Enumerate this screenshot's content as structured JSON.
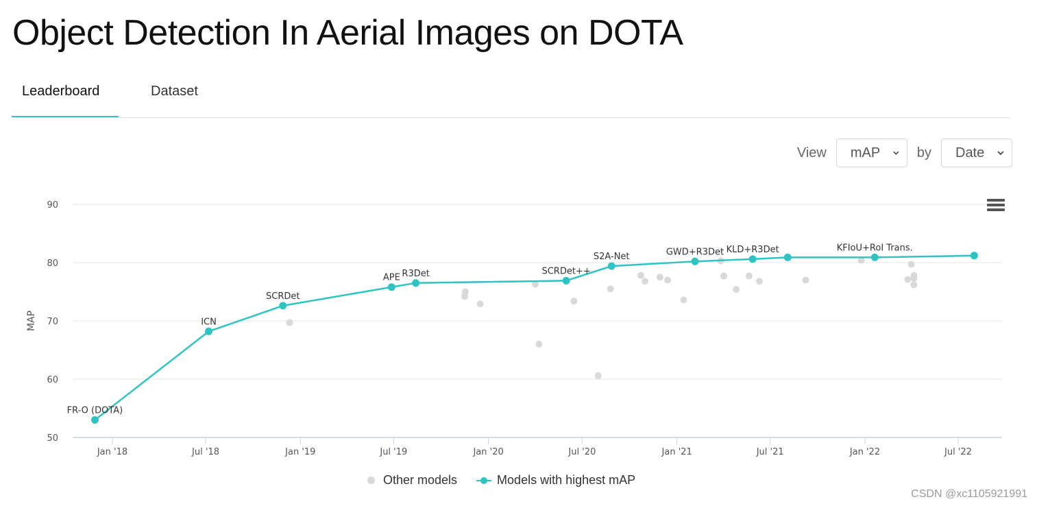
{
  "page": {
    "title": "Object Detection In Aerial Images on DOTA"
  },
  "tabs": [
    {
      "label": "Leaderboard",
      "active": true
    },
    {
      "label": "Dataset",
      "active": false
    }
  ],
  "controls": {
    "view_label": "View",
    "view_value": "mAP",
    "by_label": "by",
    "by_value": "Date"
  },
  "colors": {
    "accent": "#2ec4c4",
    "other": "#d9d9d9",
    "grid": "#e6e6e6"
  },
  "chart_data": {
    "type": "scatter",
    "ylabel": "MAP",
    "ylim": [
      50,
      90
    ],
    "yticks": [
      50,
      60,
      70,
      80,
      90
    ],
    "xticks": [
      {
        "label": "Jan '18",
        "date": "2018-01-01"
      },
      {
        "label": "Jul '18",
        "date": "2018-07-01"
      },
      {
        "label": "Jan '19",
        "date": "2019-01-01"
      },
      {
        "label": "Jul '19",
        "date": "2019-07-01"
      },
      {
        "label": "Jan '20",
        "date": "2020-01-01"
      },
      {
        "label": "Jul '20",
        "date": "2020-07-01"
      },
      {
        "label": "Jan '21",
        "date": "2021-01-01"
      },
      {
        "label": "Jul '21",
        "date": "2021-07-01"
      },
      {
        "label": "Jan '22",
        "date": "2022-01-01"
      },
      {
        "label": "Jul '22",
        "date": "2022-07-01"
      }
    ],
    "grid": true,
    "legend_position": "bottom-center",
    "series": [
      {
        "name": "Models with highest mAP",
        "color": "#2ec4c4",
        "points": [
          {
            "x": "2017-11-28",
            "y": 53.0,
            "label": "FR-O (DOTA)"
          },
          {
            "x": "2018-07-07",
            "y": 68.2,
            "label": "ICN"
          },
          {
            "x": "2018-11-28",
            "y": 72.6,
            "label": "SCRDet"
          },
          {
            "x": "2019-06-27",
            "y": 75.8,
            "label": "APE"
          },
          {
            "x": "2019-08-13",
            "y": 76.5,
            "label": "R3Det"
          },
          {
            "x": "2020-05-31",
            "y": 76.9,
            "label": "SCRDet++"
          },
          {
            "x": "2020-08-27",
            "y": 79.4,
            "label": "S2A-Net"
          },
          {
            "x": "2021-02-05",
            "y": 80.2,
            "label": "GWD+R3Det"
          },
          {
            "x": "2021-05-28",
            "y": 80.6,
            "label": "KLD+R3Det"
          },
          {
            "x": "2021-08-04",
            "y": 80.9,
            "label": ""
          },
          {
            "x": "2022-01-20",
            "y": 80.9,
            "label": "KFIoU+RoI Trans."
          },
          {
            "x": "2022-08-01",
            "y": 81.2,
            "label": ""
          }
        ]
      },
      {
        "name": "Other models",
        "color": "#d9d9d9",
        "points": [
          {
            "x": "2018-12-11",
            "y": 69.7
          },
          {
            "x": "2019-11-16",
            "y": 74.2
          },
          {
            "x": "2019-11-17",
            "y": 75.0
          },
          {
            "x": "2019-12-16",
            "y": 72.9
          },
          {
            "x": "2020-04-01",
            "y": 76.3
          },
          {
            "x": "2020-04-08",
            "y": 66.0
          },
          {
            "x": "2020-06-15",
            "y": 73.4
          },
          {
            "x": "2020-08-01",
            "y": 60.6
          },
          {
            "x": "2020-08-25",
            "y": 75.5
          },
          {
            "x": "2020-10-23",
            "y": 77.8
          },
          {
            "x": "2020-10-31",
            "y": 76.8
          },
          {
            "x": "2020-11-29",
            "y": 77.5
          },
          {
            "x": "2020-12-14",
            "y": 77.0
          },
          {
            "x": "2021-01-14",
            "y": 73.6
          },
          {
            "x": "2021-03-27",
            "y": 80.3
          },
          {
            "x": "2021-04-02",
            "y": 77.7
          },
          {
            "x": "2021-04-26",
            "y": 75.4
          },
          {
            "x": "2021-05-21",
            "y": 77.7
          },
          {
            "x": "2021-06-10",
            "y": 76.8
          },
          {
            "x": "2021-09-08",
            "y": 77.0
          },
          {
            "x": "2021-12-25",
            "y": 80.4
          },
          {
            "x": "2022-03-25",
            "y": 77.1
          },
          {
            "x": "2022-04-01",
            "y": 79.7
          },
          {
            "x": "2022-04-06",
            "y": 77.8
          },
          {
            "x": "2022-04-06",
            "y": 77.3
          },
          {
            "x": "2022-04-06",
            "y": 76.2
          }
        ]
      }
    ]
  },
  "legend": {
    "other_label": "Other models",
    "best_label": "Models with highest mAP"
  },
  "watermark": "CSDN @xc1105921991"
}
